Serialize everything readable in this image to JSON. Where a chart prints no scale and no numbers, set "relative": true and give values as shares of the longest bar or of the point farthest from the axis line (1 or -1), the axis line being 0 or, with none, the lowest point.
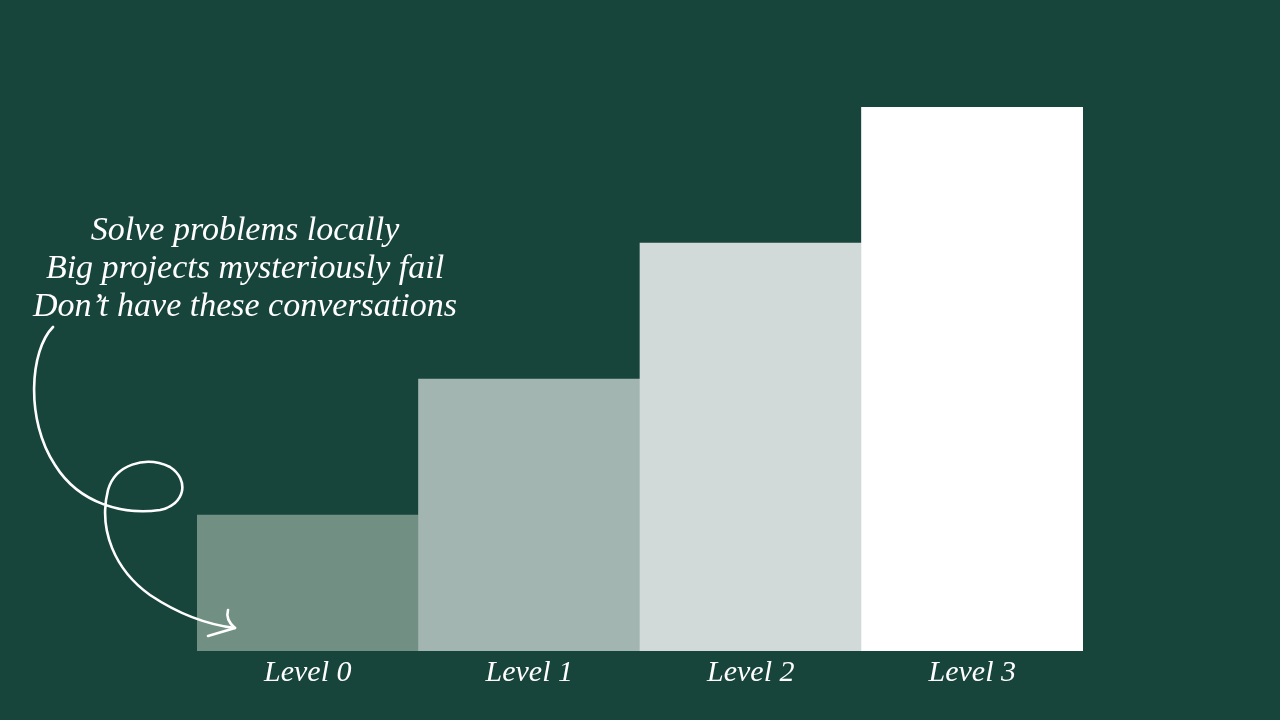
{
  "chart_data": {
    "type": "bar",
    "categories": [
      "Level 0",
      "Level 1",
      "Level 2",
      "Level 3"
    ],
    "values": [
      0.25,
      0.5,
      0.75,
      1
    ],
    "colors": [
      "#728f84",
      "#a3b5b0",
      "#d1dad8",
      "#ffffff"
    ],
    "relative": true,
    "annotations": [
      "Solve problems locally\nBig projects mysteriously fail\nDon’t have these conversations"
    ]
  }
}
